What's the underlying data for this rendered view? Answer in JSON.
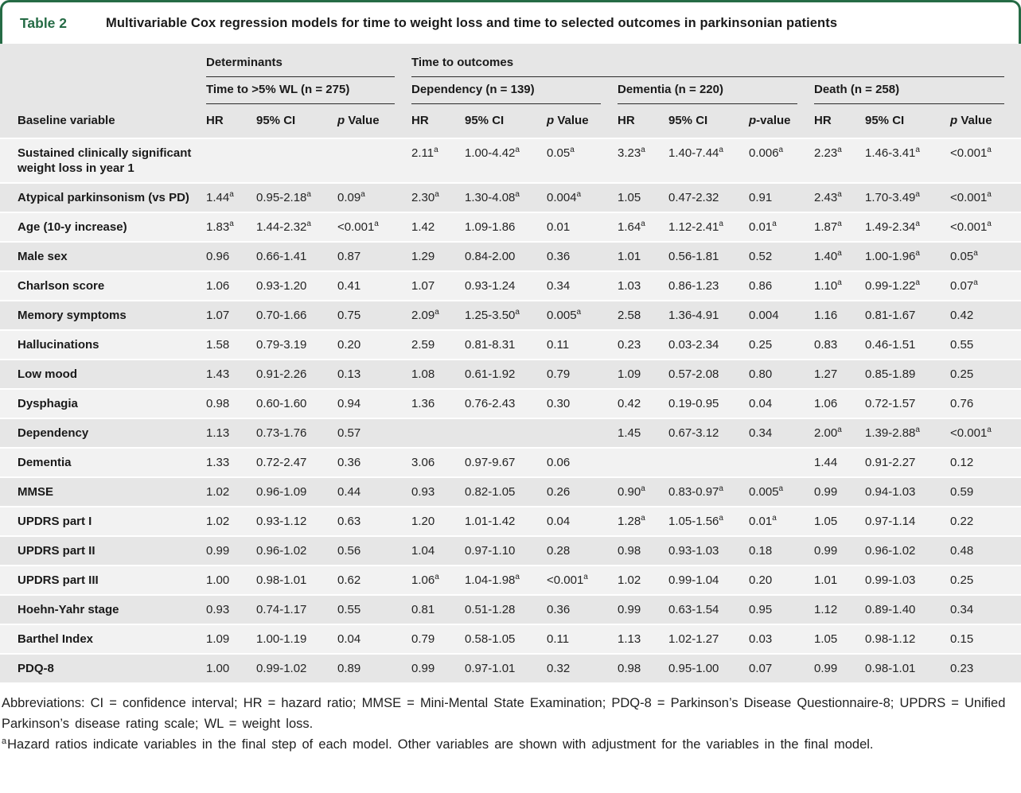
{
  "table": {
    "label": "Table 2",
    "title": "Multivariable Cox regression models for time to weight loss and time to selected outcomes in parkinsonian patients",
    "col_groups": [
      {
        "label": "Determinants"
      },
      {
        "label": "Time to outcomes"
      }
    ],
    "sub_groups": [
      "Time to >5% WL (n = 275)",
      "Dependency (n = 139)",
      "Dementia (n = 220)",
      "Death (n = 258)"
    ],
    "col_headers": {
      "variable": "Baseline variable",
      "per_group": [
        [
          "HR",
          "95% CI",
          "p Value"
        ],
        [
          "HR",
          "95% CI",
          "p Value"
        ],
        [
          "HR",
          "95% CI",
          "p-value"
        ],
        [
          "HR",
          "95% CI",
          "p Value"
        ]
      ]
    },
    "rows": [
      {
        "variable": "Sustained clinically significant weight loss in year 1",
        "cells": [
          "",
          "",
          "",
          "2.11^a",
          "1.00-4.42^a",
          "0.05^a",
          "3.23^a",
          "1.40-7.44^a",
          "0.006^a",
          "2.23^a",
          "1.46-3.41^a",
          "<0.001^a"
        ]
      },
      {
        "variable": "Atypical parkinsonism (vs PD)",
        "cells": [
          "1.44^a",
          "0.95-2.18^a",
          "0.09^a",
          "2.30^a",
          "1.30-4.08^a",
          "0.004^a",
          "1.05",
          "0.47-2.32",
          "0.91",
          "2.43^a",
          "1.70-3.49^a",
          "<0.001^a"
        ]
      },
      {
        "variable": "Age (10-y increase)",
        "cells": [
          "1.83^a",
          "1.44-2.32^a",
          "<0.001^a",
          "1.42",
          "1.09-1.86",
          "0.01",
          "1.64^a",
          "1.12-2.41^a",
          "0.01^a",
          "1.87^a",
          "1.49-2.34^a",
          "<0.001^a"
        ]
      },
      {
        "variable": "Male sex",
        "cells": [
          "0.96",
          "0.66-1.41",
          "0.87",
          "1.29",
          "0.84-2.00",
          "0.36",
          "1.01",
          "0.56-1.81",
          "0.52",
          "1.40^a",
          "1.00-1.96^a",
          "0.05^a"
        ]
      },
      {
        "variable": "Charlson score",
        "cells": [
          "1.06",
          "0.93-1.20",
          "0.41",
          "1.07",
          "0.93-1.24",
          "0.34",
          "1.03",
          "0.86-1.23",
          "0.86",
          "1.10^a",
          "0.99-1.22^a",
          "0.07^a"
        ]
      },
      {
        "variable": "Memory symptoms",
        "cells": [
          "1.07",
          "0.70-1.66",
          "0.75",
          "2.09^a",
          "1.25-3.50^a",
          "0.005^a",
          "2.58",
          "1.36-4.91",
          "0.004",
          "1.16",
          "0.81-1.67",
          "0.42"
        ]
      },
      {
        "variable": "Hallucinations",
        "cells": [
          "1.58",
          "0.79-3.19",
          "0.20",
          "2.59",
          "0.81-8.31",
          "0.11",
          "0.23",
          "0.03-2.34",
          "0.25",
          "0.83",
          "0.46-1.51",
          "0.55"
        ]
      },
      {
        "variable": "Low mood",
        "cells": [
          "1.43",
          "0.91-2.26",
          "0.13",
          "1.08",
          "0.61-1.92",
          "0.79",
          "1.09",
          "0.57-2.08",
          "0.80",
          "1.27",
          "0.85-1.89",
          "0.25"
        ]
      },
      {
        "variable": "Dysphagia",
        "cells": [
          "0.98",
          "0.60-1.60",
          "0.94",
          "1.36",
          "0.76-2.43",
          "0.30",
          "0.42",
          "0.19-0.95",
          "0.04",
          "1.06",
          "0.72-1.57",
          "0.76"
        ]
      },
      {
        "variable": "Dependency",
        "cells": [
          "1.13",
          "0.73-1.76",
          "0.57",
          "",
          "",
          "",
          "1.45",
          "0.67-3.12",
          "0.34",
          "2.00^a",
          "1.39-2.88^a",
          "<0.001^a"
        ]
      },
      {
        "variable": "Dementia",
        "cells": [
          "1.33",
          "0.72-2.47",
          "0.36",
          "3.06",
          "0.97-9.67",
          "0.06",
          "",
          "",
          "",
          "1.44",
          "0.91-2.27",
          "0.12"
        ]
      },
      {
        "variable": "MMSE",
        "cells": [
          "1.02",
          "0.96-1.09",
          "0.44",
          "0.93",
          "0.82-1.05",
          "0.26",
          "0.90^a",
          "0.83-0.97^a",
          "0.005^a",
          "0.99",
          "0.94-1.03",
          "0.59"
        ]
      },
      {
        "variable": "UPDRS part I",
        "cells": [
          "1.02",
          "0.93-1.12",
          "0.63",
          "1.20",
          "1.01-1.42",
          "0.04",
          "1.28^a",
          "1.05-1.56^a",
          "0.01^a",
          "1.05",
          "0.97-1.14",
          "0.22"
        ]
      },
      {
        "variable": "UPDRS part II",
        "cells": [
          "0.99",
          "0.96-1.02",
          "0.56",
          "1.04",
          "0.97-1.10",
          "0.28",
          "0.98",
          "0.93-1.03",
          "0.18",
          "0.99",
          "0.96-1.02",
          "0.48"
        ]
      },
      {
        "variable": "UPDRS part III",
        "cells": [
          "1.00",
          "0.98-1.01",
          "0.62",
          "1.06^a",
          "1.04-1.98^a",
          "<0.001^a",
          "1.02",
          "0.99-1.04",
          "0.20",
          "1.01",
          "0.99-1.03",
          "0.25"
        ]
      },
      {
        "variable": "Hoehn-Yahr stage",
        "cells": [
          "0.93",
          "0.74-1.17",
          "0.55",
          "0.81",
          "0.51-1.28",
          "0.36",
          "0.99",
          "0.63-1.54",
          "0.95",
          "1.12",
          "0.89-1.40",
          "0.34"
        ]
      },
      {
        "variable": "Barthel Index",
        "cells": [
          "1.09",
          "1.00-1.19",
          "0.04",
          "0.79",
          "0.58-1.05",
          "0.11",
          "1.13",
          "1.02-1.27",
          "0.03",
          "1.05",
          "0.98-1.12",
          "0.15"
        ]
      },
      {
        "variable": "PDQ-8",
        "cells": [
          "1.00",
          "0.99-1.02",
          "0.89",
          "0.99",
          "0.97-1.01",
          "0.32",
          "0.98",
          "0.95-1.00",
          "0.07",
          "0.99",
          "0.98-1.01",
          "0.23"
        ]
      }
    ],
    "footnotes": {
      "abbreviations": "Abbreviations: CI = confidence interval; HR = hazard ratio; MMSE = Mini-Mental State Examination; PDQ-8 = Parkinson’s Disease Questionnaire-8; UPDRS = Unified Parkinson’s disease rating scale; WL = weight loss.",
      "marker": "a",
      "footnote_a": "Hazard ratios indicate variables in the final step of each model. Other variables are shown with adjustment for the variables in the final model."
    },
    "colors": {
      "accent_green": "#256b45",
      "row_gray": "#e6e6e6",
      "row_light": "#f2f2f2",
      "rule_dark": "#2b2b2b"
    }
  }
}
